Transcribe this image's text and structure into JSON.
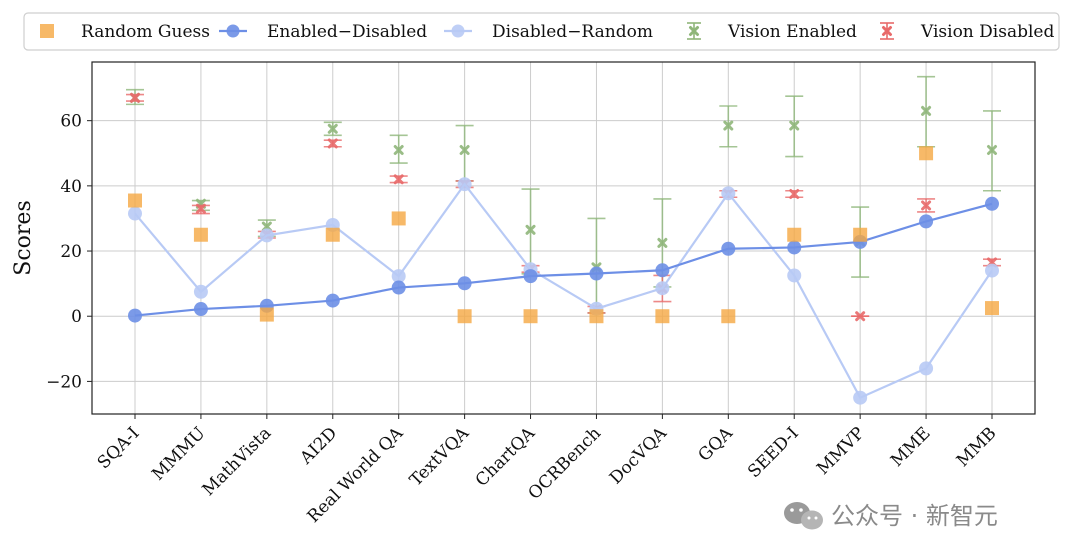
{
  "chart_data": {
    "type": "line",
    "ylabel": "Scores",
    "xlabel": "",
    "ylim": [
      -30,
      78
    ],
    "yticks": [
      -20,
      0,
      20,
      40,
      60
    ],
    "grid": true,
    "legend_position": "top",
    "categories": [
      "SQA-I",
      "MMMU",
      "MathVista",
      "AI2D",
      "Real World QA",
      "TextVQA",
      "ChartQA",
      "OCRBench",
      "DocVQA",
      "GQA",
      "SEED-I",
      "MMVP",
      "MME",
      "MMB"
    ],
    "series": [
      {
        "name": "Random Guess",
        "kind": "square",
        "color": "#f5a742",
        "values": [
          35.5,
          25,
          0.5,
          25,
          30,
          0,
          0,
          0,
          0,
          0,
          25,
          25,
          50,
          2.5
        ]
      },
      {
        "name": "Enabled−Disabled",
        "kind": "line",
        "color": "#6d8fe6",
        "values": [
          0.2,
          2.2,
          3.2,
          4.8,
          8.8,
          10.1,
          12.3,
          13.1,
          14.1,
          20.7,
          21.1,
          22.8,
          29.1,
          34.5
        ]
      },
      {
        "name": "Disabled−Random",
        "kind": "line",
        "color": "#b8caf5",
        "values": [
          31.5,
          7.5,
          24.8,
          28,
          12.3,
          40.5,
          14.4,
          2.3,
          8.6,
          37.7,
          12.5,
          -25,
          -16,
          14
        ]
      },
      {
        "name": "Vision Enabled",
        "kind": "errorbar",
        "color": "#8fb67a",
        "values": [
          67,
          34.5,
          27.5,
          57.5,
          51,
          51,
          26.5,
          15,
          22.5,
          58.5,
          58.5,
          23,
          63,
          51
        ],
        "err_low": [
          65,
          32.5,
          24.5,
          55.5,
          47,
          41.5,
          13,
          1,
          9,
          52,
          49,
          12,
          52,
          38.5
        ],
        "err_high": [
          69.5,
          35.5,
          29.5,
          59.5,
          55.5,
          58.5,
          39,
          30,
          36,
          64.5,
          67.5,
          33.5,
          73.5,
          63
        ]
      },
      {
        "name": "Vision Disabled",
        "kind": "errorbar",
        "color": "#e86a6a",
        "values": [
          67,
          33,
          25,
          53,
          42,
          40.5,
          14.5,
          2,
          8.5,
          37.5,
          37.5,
          0,
          34,
          16.5
        ],
        "err_low": [
          66,
          31.5,
          24,
          52,
          41,
          39.5,
          13.5,
          1,
          4.5,
          36.5,
          36.5,
          0,
          32,
          15.5
        ],
        "err_high": [
          68,
          34,
          26,
          54,
          43,
          41.5,
          15.5,
          3,
          12.5,
          38.5,
          38.5,
          0,
          36,
          17.5
        ]
      }
    ]
  },
  "watermark": {
    "text": "公众号 · 新智元"
  }
}
